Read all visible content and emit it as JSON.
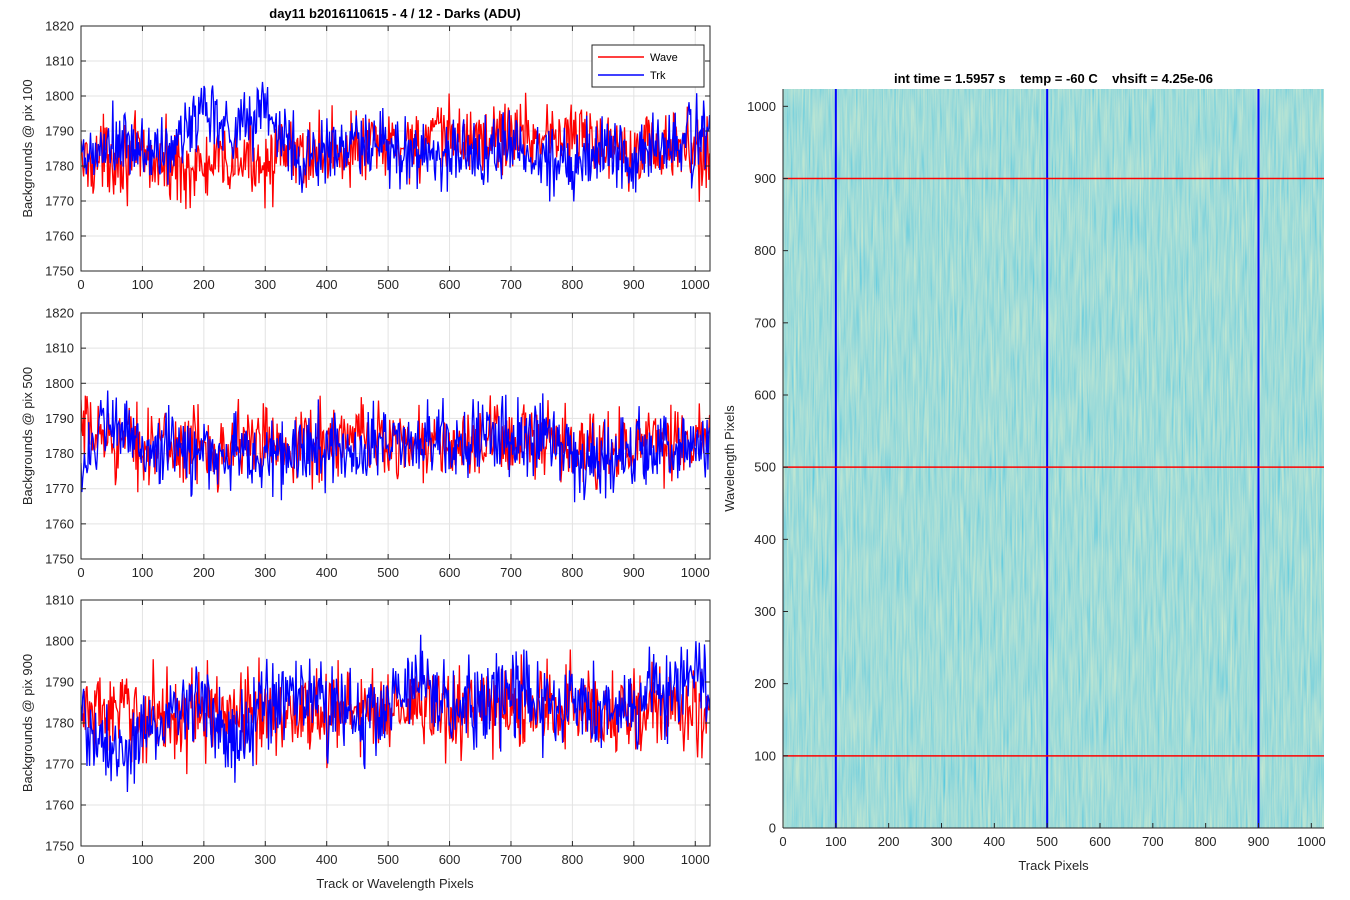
{
  "figure": {
    "title": "day11 b2016110615 - 4 / 12 - Darks (ADU)",
    "xlabel": "Track or Wavelength Pixels"
  },
  "legend": {
    "placement": "top-right",
    "entries": [
      {
        "label": "Wave",
        "color": "#ff0000"
      },
      {
        "label": "Trk",
        "color": "#0000ff"
      }
    ]
  },
  "chart_data": [
    {
      "type": "line",
      "ylabel": "Backgrounds @ pix 100",
      "xlim": [
        0,
        1024
      ],
      "ylim": [
        1750,
        1820
      ],
      "xticks": [
        0,
        100,
        200,
        300,
        400,
        500,
        600,
        700,
        800,
        900,
        1000
      ],
      "yticks": [
        1750,
        1760,
        1770,
        1780,
        1790,
        1800,
        1810,
        1820
      ],
      "grid": true,
      "series": [
        {
          "name": "Wave",
          "color": "#ff0000",
          "x": [
            0,
            50,
            100,
            150,
            200,
            250,
            300,
            350,
            400,
            450,
            500,
            550,
            600,
            650,
            700,
            750,
            800,
            850,
            900,
            950,
            1000,
            1024
          ],
          "y": [
            1781,
            1783,
            1782,
            1780,
            1779,
            1781,
            1782,
            1783,
            1784,
            1785,
            1786,
            1787,
            1788,
            1788,
            1789,
            1789,
            1788,
            1787,
            1786,
            1785,
            1784,
            1783
          ]
        },
        {
          "name": "Trk",
          "color": "#0000ff",
          "x": [
            0,
            50,
            100,
            150,
            200,
            250,
            300,
            350,
            400,
            450,
            500,
            550,
            600,
            650,
            700,
            750,
            800,
            850,
            900,
            950,
            1000,
            1024
          ],
          "y": [
            1780,
            1786,
            1784,
            1784,
            1798,
            1790,
            1797,
            1782,
            1784,
            1786,
            1784,
            1784,
            1783,
            1784,
            1786,
            1782,
            1782,
            1785,
            1784,
            1785,
            1788,
            1789
          ]
        }
      ]
    },
    {
      "type": "line",
      "ylabel": "Backgrounds @ pix 500",
      "xlim": [
        0,
        1024
      ],
      "ylim": [
        1750,
        1820
      ],
      "xticks": [
        0,
        100,
        200,
        300,
        400,
        500,
        600,
        700,
        800,
        900,
        1000
      ],
      "yticks": [
        1750,
        1760,
        1770,
        1780,
        1790,
        1800,
        1810,
        1820
      ],
      "grid": true,
      "series": [
        {
          "name": "Wave",
          "color": "#ff0000",
          "x": [
            0,
            50,
            100,
            150,
            200,
            250,
            300,
            350,
            400,
            450,
            500,
            550,
            600,
            650,
            700,
            750,
            800,
            850,
            900,
            950,
            1000,
            1024
          ],
          "y": [
            1786,
            1784,
            1783,
            1782,
            1782,
            1783,
            1783,
            1783,
            1784,
            1785,
            1784,
            1783,
            1782,
            1782,
            1785,
            1782,
            1781,
            1780,
            1782,
            1783,
            1783,
            1784
          ]
        },
        {
          "name": "Trk",
          "color": "#0000ff",
          "x": [
            0,
            50,
            100,
            150,
            200,
            250,
            300,
            350,
            400,
            450,
            500,
            550,
            600,
            650,
            700,
            750,
            800,
            850,
            900,
            950,
            1000,
            1024
          ],
          "y": [
            1778,
            1788,
            1782,
            1781,
            1780,
            1780,
            1779,
            1780,
            1782,
            1781,
            1783,
            1784,
            1783,
            1784,
            1784,
            1786,
            1782,
            1776,
            1782,
            1782,
            1782,
            1786
          ]
        }
      ]
    },
    {
      "type": "line",
      "ylabel": "Backgrounds @ pix 900",
      "xlim": [
        0,
        1024
      ],
      "ylim": [
        1750,
        1810
      ],
      "xticks": [
        0,
        100,
        200,
        300,
        400,
        500,
        600,
        700,
        800,
        900,
        1000
      ],
      "yticks": [
        1750,
        1760,
        1770,
        1780,
        1790,
        1800,
        1810
      ],
      "grid": true,
      "series": [
        {
          "name": "Wave",
          "color": "#ff0000",
          "x": [
            0,
            50,
            100,
            150,
            200,
            250,
            300,
            350,
            400,
            450,
            500,
            550,
            600,
            650,
            700,
            750,
            800,
            850,
            900,
            950,
            1000,
            1024
          ],
          "y": [
            1783,
            1782,
            1782,
            1782,
            1782,
            1782,
            1783,
            1783,
            1783,
            1783,
            1784,
            1783,
            1783,
            1783,
            1784,
            1784,
            1784,
            1783,
            1783,
            1783,
            1783,
            1782
          ]
        },
        {
          "name": "Trk",
          "color": "#0000ff",
          "x": [
            0,
            50,
            100,
            150,
            200,
            250,
            300,
            350,
            400,
            450,
            500,
            550,
            600,
            650,
            700,
            750,
            800,
            850,
            900,
            950,
            1000,
            1024
          ],
          "y": [
            1782,
            1770,
            1778,
            1782,
            1787,
            1776,
            1784,
            1788,
            1783,
            1781,
            1784,
            1789,
            1785,
            1782,
            1790,
            1785,
            1786,
            1784,
            1784,
            1786,
            1792,
            1786
          ]
        }
      ]
    },
    {
      "type": "heatmap",
      "title": "int time = 1.5957 s    temp = -60 C    vhsift = 4.25e-06",
      "xlabel": "Track Pixels",
      "ylabel": "Wavelength Pixels",
      "xlim": [
        0,
        1024
      ],
      "ylim": [
        0,
        1024
      ],
      "xticks": [
        0,
        100,
        200,
        300,
        400,
        500,
        600,
        700,
        800,
        900,
        1000
      ],
      "yticks": [
        0,
        100,
        200,
        300,
        400,
        500,
        600,
        700,
        800,
        900,
        1000
      ],
      "colormap": "parula",
      "base_color": "#2a9bc7",
      "marker_lines": {
        "vertical": {
          "x": [
            100,
            500,
            900
          ],
          "color": "#0000ff"
        },
        "horizontal": {
          "y": [
            100,
            500,
            900
          ],
          "color": "#ff0000"
        }
      }
    }
  ]
}
